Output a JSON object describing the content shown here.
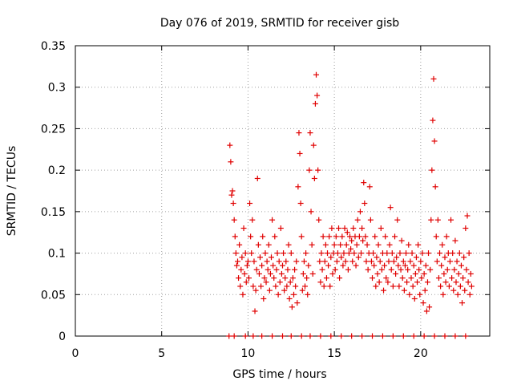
{
  "chart_data": {
    "type": "scatter",
    "title": "Day 076 of 2019, SRMTID for receiver gisb",
    "xlabel": "GPS time / hours",
    "ylabel": "SRMTID / TECUs",
    "xlim": [
      0,
      24
    ],
    "ylim": [
      0,
      0.35
    ],
    "x_ticks": [
      0,
      5,
      10,
      15,
      20
    ],
    "y_ticks": [
      0,
      0.05,
      0.1,
      0.15,
      0.2,
      0.25,
      0.3,
      0.35
    ],
    "x_tick_labels": [
      "0",
      "5",
      "10",
      "15",
      "20"
    ],
    "y_tick_labels": [
      "0",
      "0.05",
      "0.1",
      "0.15",
      "0.2",
      "0.25",
      "0.3",
      "0.35"
    ],
    "grid": true,
    "marker": "+",
    "series": [
      {
        "name": "SRMTID",
        "color": "#e00000",
        "points": [
          [
            8.95,
            0.23
          ],
          [
            9.0,
            0.21
          ],
          [
            9.05,
            0.17
          ],
          [
            9.1,
            0.175
          ],
          [
            9.15,
            0.16
          ],
          [
            9.2,
            0.14
          ],
          [
            9.25,
            0.12
          ],
          [
            9.3,
            0.1
          ],
          [
            9.35,
            0.085
          ],
          [
            9.4,
            0.09
          ],
          [
            9.45,
            0.07
          ],
          [
            9.5,
            0.11
          ],
          [
            9.55,
            0.06
          ],
          [
            9.6,
            0.08
          ],
          [
            9.65,
            0.095
          ],
          [
            9.7,
            0.05
          ],
          [
            9.75,
            0.13
          ],
          [
            9.8,
            0.075
          ],
          [
            9.85,
            0.1
          ],
          [
            9.9,
            0.065
          ],
          [
            9.95,
            0.085
          ],
          [
            10.0,
            0.09
          ],
          [
            10.05,
            0.07
          ],
          [
            10.1,
            0.16
          ],
          [
            10.15,
            0.12
          ],
          [
            10.2,
            0.1
          ],
          [
            10.25,
            0.14
          ],
          [
            10.3,
            0.06
          ],
          [
            10.35,
            0.09
          ],
          [
            10.4,
            0.03
          ],
          [
            10.45,
            0.055
          ],
          [
            10.5,
            0.08
          ],
          [
            10.55,
            0.19
          ],
          [
            10.6,
            0.11
          ],
          [
            10.65,
            0.075
          ],
          [
            10.7,
            0.095
          ],
          [
            10.75,
            0.06
          ],
          [
            10.8,
            0.085
          ],
          [
            10.85,
            0.12
          ],
          [
            10.9,
            0.045
          ],
          [
            10.95,
            0.07
          ],
          [
            11.0,
            0.1
          ],
          [
            11.05,
            0.065
          ],
          [
            11.1,
            0.09
          ],
          [
            11.15,
            0.08
          ],
          [
            11.2,
            0.11
          ],
          [
            11.25,
            0.055
          ],
          [
            11.3,
            0.075
          ],
          [
            11.35,
            0.095
          ],
          [
            11.4,
            0.14
          ],
          [
            11.45,
            0.085
          ],
          [
            11.5,
            0.07
          ],
          [
            11.55,
            0.12
          ],
          [
            11.6,
            0.06
          ],
          [
            11.65,
            0.08
          ],
          [
            11.7,
            0.1
          ],
          [
            11.75,
            0.05
          ],
          [
            11.8,
            0.09
          ],
          [
            11.85,
            0.065
          ],
          [
            11.9,
            0.13
          ],
          [
            11.95,
            0.075
          ],
          [
            12.0,
            0.085
          ],
          [
            12.05,
            0.1
          ],
          [
            12.1,
            0.055
          ],
          [
            12.15,
            0.07
          ],
          [
            12.2,
            0.09
          ],
          [
            12.25,
            0.06
          ],
          [
            12.3,
            0.08
          ],
          [
            12.35,
            0.11
          ],
          [
            12.4,
            0.045
          ],
          [
            12.45,
            0.065
          ],
          [
            12.5,
            0.1
          ],
          [
            12.55,
            0.035
          ],
          [
            12.6,
            0.07
          ],
          [
            12.65,
            0.05
          ],
          [
            12.7,
            0.08
          ],
          [
            12.75,
            0.06
          ],
          [
            12.8,
            0.09
          ],
          [
            12.85,
            0.04
          ],
          [
            12.9,
            0.18
          ],
          [
            12.95,
            0.245
          ],
          [
            13.0,
            0.22
          ],
          [
            13.05,
            0.16
          ],
          [
            13.1,
            0.12
          ],
          [
            13.15,
            0.055
          ],
          [
            13.2,
            0.075
          ],
          [
            13.25,
            0.09
          ],
          [
            13.3,
            0.06
          ],
          [
            13.35,
            0.1
          ],
          [
            13.4,
            0.07
          ],
          [
            13.45,
            0.05
          ],
          [
            13.5,
            0.085
          ],
          [
            13.55,
            0.2
          ],
          [
            13.6,
            0.245
          ],
          [
            13.65,
            0.15
          ],
          [
            13.7,
            0.11
          ],
          [
            13.75,
            0.075
          ],
          [
            13.8,
            0.23
          ],
          [
            13.85,
            0.19
          ],
          [
            13.9,
            0.28
          ],
          [
            13.95,
            0.315
          ],
          [
            14.0,
            0.29
          ],
          [
            14.05,
            0.2
          ],
          [
            14.1,
            0.14
          ],
          [
            14.15,
            0.09
          ],
          [
            14.2,
            0.065
          ],
          [
            14.25,
            0.1
          ],
          [
            14.3,
            0.08
          ],
          [
            14.35,
            0.12
          ],
          [
            14.4,
            0.06
          ],
          [
            14.45,
            0.09
          ],
          [
            14.5,
            0.11
          ],
          [
            14.55,
            0.07
          ],
          [
            14.6,
            0.1
          ],
          [
            14.65,
            0.085
          ],
          [
            14.7,
            0.12
          ],
          [
            14.75,
            0.06
          ],
          [
            14.8,
            0.095
          ],
          [
            14.85,
            0.13
          ],
          [
            14.9,
            0.075
          ],
          [
            14.95,
            0.1
          ],
          [
            15.0,
            0.11
          ],
          [
            15.05,
            0.08
          ],
          [
            15.1,
            0.12
          ],
          [
            15.15,
            0.09
          ],
          [
            15.2,
            0.1
          ],
          [
            15.25,
            0.13
          ],
          [
            15.3,
            0.07
          ],
          [
            15.35,
            0.11
          ],
          [
            15.4,
            0.095
          ],
          [
            15.45,
            0.12
          ],
          [
            15.5,
            0.085
          ],
          [
            15.55,
            0.1
          ],
          [
            15.6,
            0.13
          ],
          [
            15.65,
            0.09
          ],
          [
            15.7,
            0.11
          ],
          [
            15.75,
            0.125
          ],
          [
            15.8,
            0.08
          ],
          [
            15.85,
            0.1
          ],
          [
            15.9,
            0.12
          ],
          [
            15.95,
            0.105
          ],
          [
            16.0,
            0.115
          ],
          [
            16.05,
            0.09
          ],
          [
            16.1,
            0.13
          ],
          [
            16.15,
            0.1
          ],
          [
            16.2,
            0.12
          ],
          [
            16.25,
            0.085
          ],
          [
            16.3,
            0.11
          ],
          [
            16.35,
            0.14
          ],
          [
            16.4,
            0.095
          ],
          [
            16.45,
            0.12
          ],
          [
            16.5,
            0.15
          ],
          [
            16.55,
            0.1
          ],
          [
            16.6,
            0.13
          ],
          [
            16.65,
            0.115
          ],
          [
            16.7,
            0.185
          ],
          [
            16.75,
            0.16
          ],
          [
            16.8,
            0.12
          ],
          [
            16.85,
            0.09
          ],
          [
            16.9,
            0.11
          ],
          [
            16.95,
            0.08
          ],
          [
            17.0,
            0.1
          ],
          [
            17.05,
            0.18
          ],
          [
            17.1,
            0.14
          ],
          [
            17.15,
            0.09
          ],
          [
            17.2,
            0.07
          ],
          [
            17.25,
            0.1
          ],
          [
            17.3,
            0.085
          ],
          [
            17.35,
            0.12
          ],
          [
            17.4,
            0.06
          ],
          [
            17.45,
            0.095
          ],
          [
            17.5,
            0.075
          ],
          [
            17.55,
            0.11
          ],
          [
            17.6,
            0.065
          ],
          [
            17.65,
            0.09
          ],
          [
            17.7,
            0.13
          ],
          [
            17.75,
            0.08
          ],
          [
            17.8,
            0.1
          ],
          [
            17.85,
            0.055
          ],
          [
            17.9,
            0.085
          ],
          [
            17.95,
            0.12
          ],
          [
            18.0,
            0.07
          ],
          [
            18.05,
            0.1
          ],
          [
            18.1,
            0.065
          ],
          [
            18.15,
            0.09
          ],
          [
            18.2,
            0.11
          ],
          [
            18.25,
            0.155
          ],
          [
            18.3,
            0.08
          ],
          [
            18.35,
            0.1
          ],
          [
            18.4,
            0.06
          ],
          [
            18.45,
            0.09
          ],
          [
            18.5,
            0.12
          ],
          [
            18.55,
            0.075
          ],
          [
            18.6,
            0.095
          ],
          [
            18.65,
            0.14
          ],
          [
            18.7,
            0.085
          ],
          [
            18.75,
            0.06
          ],
          [
            18.8,
            0.1
          ],
          [
            18.85,
            0.08
          ],
          [
            18.9,
            0.115
          ],
          [
            18.95,
            0.07
          ],
          [
            19.0,
            0.09
          ],
          [
            19.05,
            0.055
          ],
          [
            19.1,
            0.085
          ],
          [
            19.15,
            0.1
          ],
          [
            19.2,
            0.065
          ],
          [
            19.25,
            0.08
          ],
          [
            19.3,
            0.11
          ],
          [
            19.35,
            0.05
          ],
          [
            19.4,
            0.09
          ],
          [
            19.45,
            0.07
          ],
          [
            19.5,
            0.1
          ],
          [
            19.55,
            0.06
          ],
          [
            19.6,
            0.085
          ],
          [
            19.65,
            0.045
          ],
          [
            19.7,
            0.075
          ],
          [
            19.75,
            0.095
          ],
          [
            19.8,
            0.065
          ],
          [
            19.85,
            0.11
          ],
          [
            19.9,
            0.08
          ],
          [
            19.95,
            0.05
          ],
          [
            20.0,
            0.09
          ],
          [
            20.05,
            0.07
          ],
          [
            20.1,
            0.1
          ],
          [
            20.15,
            0.04
          ],
          [
            20.2,
            0.075
          ],
          [
            20.25,
            0.055
          ],
          [
            20.3,
            0.085
          ],
          [
            20.35,
            0.03
          ],
          [
            20.4,
            0.065
          ],
          [
            20.45,
            0.1
          ],
          [
            20.5,
            0.035
          ],
          [
            20.55,
            0.08
          ],
          [
            20.6,
            0.14
          ],
          [
            20.65,
            0.2
          ],
          [
            20.7,
            0.26
          ],
          [
            20.75,
            0.31
          ],
          [
            20.8,
            0.235
          ],
          [
            20.85,
            0.18
          ],
          [
            20.9,
            0.12
          ],
          [
            20.95,
            0.09
          ],
          [
            21.0,
            0.14
          ],
          [
            21.05,
            0.07
          ],
          [
            21.1,
            0.1
          ],
          [
            21.15,
            0.06
          ],
          [
            21.2,
            0.085
          ],
          [
            21.25,
            0.11
          ],
          [
            21.3,
            0.05
          ],
          [
            21.35,
            0.075
          ],
          [
            21.4,
            0.095
          ],
          [
            21.45,
            0.065
          ],
          [
            21.5,
            0.12
          ],
          [
            21.55,
            0.08
          ],
          [
            21.6,
            0.1
          ],
          [
            21.65,
            0.06
          ],
          [
            21.7,
            0.09
          ],
          [
            21.75,
            0.14
          ],
          [
            21.8,
            0.07
          ],
          [
            21.85,
            0.1
          ],
          [
            21.9,
            0.055
          ],
          [
            21.95,
            0.08
          ],
          [
            22.0,
            0.115
          ],
          [
            22.05,
            0.065
          ],
          [
            22.1,
            0.09
          ],
          [
            22.15,
            0.05
          ],
          [
            22.2,
            0.075
          ],
          [
            22.25,
            0.1
          ],
          [
            22.3,
            0.06
          ],
          [
            22.35,
            0.085
          ],
          [
            22.4,
            0.04
          ],
          [
            22.45,
            0.07
          ],
          [
            22.5,
            0.095
          ],
          [
            22.55,
            0.055
          ],
          [
            22.6,
            0.13
          ],
          [
            22.65,
            0.08
          ],
          [
            22.7,
            0.145
          ],
          [
            22.75,
            0.065
          ],
          [
            22.8,
            0.1
          ],
          [
            22.85,
            0.05
          ],
          [
            22.9,
            0.075
          ],
          [
            22.95,
            0.06
          ],
          [
            8.9,
            0.0
          ],
          [
            9.2,
            0.0
          ],
          [
            9.85,
            0.0
          ],
          [
            10.3,
            0.0
          ],
          [
            10.8,
            0.0
          ],
          [
            11.4,
            0.0
          ],
          [
            12.0,
            0.0
          ],
          [
            12.5,
            0.0
          ],
          [
            13.1,
            0.0
          ],
          [
            13.6,
            0.0
          ],
          [
            14.2,
            0.0
          ],
          [
            14.8,
            0.0
          ],
          [
            15.4,
            0.0
          ],
          [
            16.0,
            0.0
          ],
          [
            16.6,
            0.0
          ],
          [
            17.2,
            0.0
          ],
          [
            17.8,
            0.0
          ],
          [
            18.4,
            0.0
          ],
          [
            19.0,
            0.0
          ],
          [
            19.6,
            0.0
          ],
          [
            20.2,
            0.0
          ],
          [
            20.8,
            0.0
          ],
          [
            21.4,
            0.0
          ],
          [
            22.0,
            0.0
          ],
          [
            22.6,
            0.0
          ]
        ]
      }
    ]
  }
}
